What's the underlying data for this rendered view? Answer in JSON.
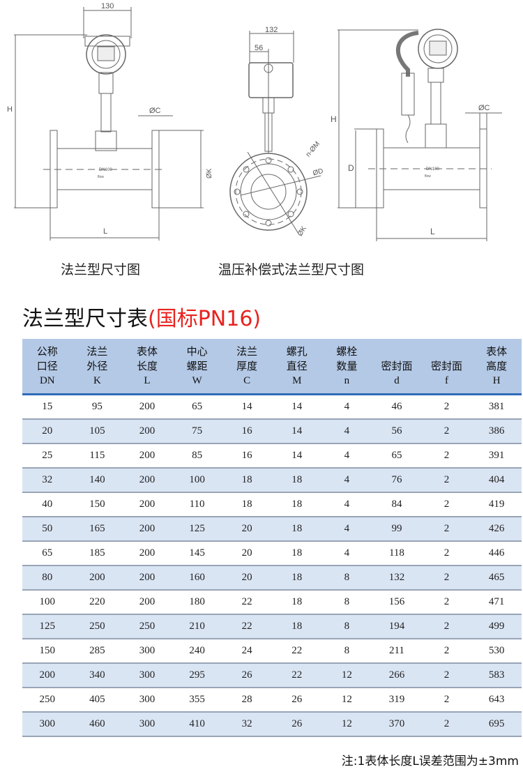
{
  "drawings": {
    "flange": {
      "caption": "法兰型尺寸图",
      "labels": {
        "width": "130",
        "height": "H",
        "thickness": "ØC",
        "outer_dia": "ØK",
        "length": "L",
        "dn": "DN100",
        "flow": "flow"
      }
    },
    "compensated": {
      "caption": "温压补偿式法兰型尺寸图",
      "side_labels": {
        "width": "132",
        "offset": "56",
        "bolt_holes": "n-ØM",
        "bolt_circle": "ØD",
        "outer_dia": "ØK"
      },
      "front_labels": {
        "height": "H",
        "seal": "D",
        "thickness": "ØC",
        "length": "L",
        "dn": "DN100",
        "flow": "flow"
      }
    }
  },
  "title": {
    "main": "法兰型尺寸表",
    "standard": "(国标PN16)"
  },
  "table": {
    "headers": [
      {
        "l1": "公称",
        "l2": "口径",
        "sym": "DN"
      },
      {
        "l1": "法兰",
        "l2": "外径",
        "sym": "K"
      },
      {
        "l1": "表体",
        "l2": "长度",
        "sym": "L"
      },
      {
        "l1": "中心",
        "l2": "螺距",
        "sym": "W"
      },
      {
        "l1": "法兰",
        "l2": "厚度",
        "sym": "C"
      },
      {
        "l1": "螺孔",
        "l2": "直径",
        "sym": "M"
      },
      {
        "l1": "螺栓",
        "l2": "数量",
        "sym": "n"
      },
      {
        "l1": "",
        "l2": "密封面",
        "sym": "d"
      },
      {
        "l1": "",
        "l2": "密封面",
        "sym": "f"
      },
      {
        "l1": "表体",
        "l2": "高度",
        "sym": "H"
      }
    ],
    "rows": [
      [
        "15",
        "95",
        "200",
        "65",
        "14",
        "14",
        "4",
        "46",
        "2",
        "381"
      ],
      [
        "20",
        "105",
        "200",
        "75",
        "16",
        "14",
        "4",
        "56",
        "2",
        "386"
      ],
      [
        "25",
        "115",
        "200",
        "85",
        "16",
        "14",
        "4",
        "65",
        "2",
        "391"
      ],
      [
        "32",
        "140",
        "200",
        "100",
        "18",
        "18",
        "4",
        "76",
        "2",
        "404"
      ],
      [
        "40",
        "150",
        "200",
        "110",
        "18",
        "18",
        "4",
        "84",
        "2",
        "419"
      ],
      [
        "50",
        "165",
        "200",
        "125",
        "20",
        "18",
        "4",
        "99",
        "2",
        "426"
      ],
      [
        "65",
        "185",
        "200",
        "145",
        "20",
        "18",
        "4",
        "118",
        "2",
        "446"
      ],
      [
        "80",
        "200",
        "200",
        "160",
        "20",
        "18",
        "8",
        "132",
        "2",
        "465"
      ],
      [
        "100",
        "220",
        "200",
        "180",
        "22",
        "18",
        "8",
        "156",
        "2",
        "471"
      ],
      [
        "125",
        "250",
        "250",
        "210",
        "22",
        "18",
        "8",
        "194",
        "2",
        "499"
      ],
      [
        "150",
        "285",
        "300",
        "240",
        "24",
        "22",
        "8",
        "211",
        "2",
        "530"
      ],
      [
        "200",
        "340",
        "300",
        "295",
        "26",
        "22",
        "12",
        "266",
        "2",
        "583"
      ],
      [
        "250",
        "405",
        "300",
        "355",
        "28",
        "26",
        "12",
        "319",
        "2",
        "643"
      ],
      [
        "300",
        "460",
        "300",
        "410",
        "32",
        "26",
        "12",
        "370",
        "2",
        "695"
      ]
    ]
  },
  "note": "注:1表体长度L误差范围为±3mm",
  "colors": {
    "header_bg": "#b4c9e6",
    "row_alt": "#dae5f4",
    "header_rule": "#2e6bb8",
    "accent_red": "#e8231f"
  }
}
